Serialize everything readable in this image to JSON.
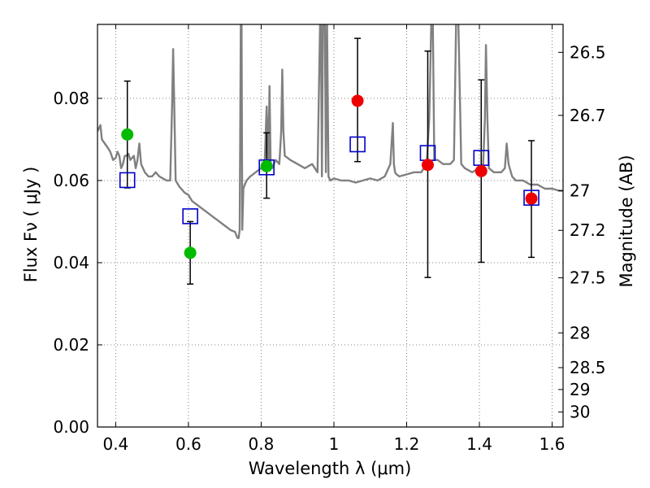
{
  "chart_data": {
    "type": "scatter",
    "title": "",
    "xlabel": "Wavelength  λ (μm)",
    "ylabel": "Flux  Fν  ( μJy )",
    "y2label": "Magnitude (AB)",
    "xlim": [
      0.35,
      1.63
    ],
    "ylim": [
      0.0,
      0.098
    ],
    "grid": true,
    "xticks": [
      0.4,
      0.6,
      0.8,
      1.0,
      1.2,
      1.4,
      1.6
    ],
    "xtick_labels": [
      "0.4",
      "0.6",
      "0.8",
      "1",
      "1.2",
      "1.4",
      "1.6"
    ],
    "yticks": [
      0.0,
      0.02,
      0.04,
      0.06,
      0.08
    ],
    "ytick_labels": [
      "0.00",
      "0.02",
      "0.04",
      "0.06",
      "0.08"
    ],
    "mag_ticks": [
      "26.5",
      "26.7",
      "27",
      "27.2",
      "27.5",
      "28",
      "28.5",
      "29",
      "30"
    ],
    "colors": {
      "model": "#808080",
      "green": "#00bb00",
      "red": "#ee0000",
      "box": "#0000cc",
      "errorbar": "#000000",
      "grid": "#808080"
    },
    "model_spectrum": {
      "x": [
        0.35,
        0.358,
        0.362,
        0.37,
        0.378,
        0.385,
        0.393,
        0.4,
        0.405,
        0.41,
        0.415,
        0.42,
        0.425,
        0.43,
        0.435,
        0.44,
        0.445,
        0.45,
        0.455,
        0.46,
        0.465,
        0.47,
        0.48,
        0.49,
        0.5,
        0.51,
        0.52,
        0.53,
        0.54,
        0.55,
        0.555,
        0.558,
        0.561,
        0.565,
        0.575,
        0.59,
        0.6,
        0.61,
        0.625,
        0.64,
        0.655,
        0.67,
        0.685,
        0.7,
        0.715,
        0.728,
        0.735,
        0.738,
        0.741,
        0.744,
        0.746,
        0.748,
        0.751,
        0.755,
        0.76,
        0.77,
        0.785,
        0.8,
        0.81,
        0.815,
        0.82,
        0.823,
        0.826,
        0.83,
        0.84,
        0.85,
        0.855,
        0.858,
        0.861,
        0.865,
        0.88,
        0.9,
        0.92,
        0.94,
        0.955,
        0.962,
        0.964,
        0.967,
        0.97,
        0.973,
        0.975,
        0.978,
        0.981,
        0.985,
        0.99,
        1.0,
        1.02,
        1.04,
        1.06,
        1.08,
        1.1,
        1.12,
        1.14,
        1.155,
        1.162,
        1.165,
        1.168,
        1.172,
        1.18,
        1.2,
        1.22,
        1.24,
        1.255,
        1.262,
        1.268,
        1.272,
        1.276,
        1.285,
        1.3,
        1.32,
        1.33,
        1.336,
        1.342,
        1.35,
        1.36,
        1.38,
        1.4,
        1.41,
        1.415,
        1.418,
        1.422,
        1.426,
        1.44,
        1.45,
        1.46,
        1.47,
        1.475,
        1.48,
        1.49,
        1.5,
        1.52,
        1.54,
        1.56,
        1.58,
        1.6,
        1.62,
        1.63
      ],
      "y": [
        0.072,
        0.0735,
        0.07,
        0.069,
        0.068,
        0.067,
        0.065,
        0.0655,
        0.067,
        0.066,
        0.063,
        0.064,
        0.066,
        0.066,
        0.0665,
        0.065,
        0.0655,
        0.066,
        0.063,
        0.065,
        0.069,
        0.064,
        0.062,
        0.061,
        0.061,
        0.062,
        0.061,
        0.0605,
        0.06,
        0.06,
        0.078,
        0.092,
        0.078,
        0.06,
        0.0585,
        0.057,
        0.0565,
        0.055,
        0.054,
        0.053,
        0.052,
        0.051,
        0.05,
        0.049,
        0.048,
        0.0475,
        0.046,
        0.046,
        0.048,
        0.099,
        0.099,
        0.048,
        0.058,
        0.059,
        0.06,
        0.061,
        0.062,
        0.063,
        0.065,
        0.078,
        0.064,
        0.083,
        0.064,
        0.063,
        0.065,
        0.064,
        0.072,
        0.087,
        0.072,
        0.066,
        0.065,
        0.064,
        0.063,
        0.064,
        0.062,
        0.099,
        0.099,
        0.061,
        0.099,
        0.099,
        0.099,
        0.062,
        0.099,
        0.061,
        0.06,
        0.0605,
        0.06,
        0.06,
        0.0595,
        0.06,
        0.0605,
        0.06,
        0.061,
        0.064,
        0.074,
        0.064,
        0.062,
        0.0615,
        0.061,
        0.0615,
        0.062,
        0.062,
        0.064,
        0.075,
        0.099,
        0.099,
        0.065,
        0.065,
        0.064,
        0.064,
        0.065,
        0.099,
        0.099,
        0.064,
        0.063,
        0.062,
        0.063,
        0.063,
        0.075,
        0.093,
        0.075,
        0.063,
        0.062,
        0.062,
        0.062,
        0.063,
        0.069,
        0.064,
        0.061,
        0.06,
        0.06,
        0.059,
        0.059,
        0.058,
        0.058,
        0.0575,
        0.0575
      ]
    },
    "observed_green": {
      "x": [
        0.432,
        0.605,
        0.815
      ],
      "y": [
        0.0712,
        0.0424,
        0.0635
      ],
      "err_low": [
        0.0582,
        0.0348,
        0.0557
      ],
      "err_high": [
        0.0842,
        0.05,
        0.0716
      ]
    },
    "observed_red": {
      "x": [
        1.065,
        1.258,
        1.405,
        1.543
      ],
      "y": [
        0.0794,
        0.0638,
        0.0623,
        0.0556
      ],
      "err_low": [
        0.0646,
        0.0364,
        0.0401,
        0.0413
      ],
      "err_high": [
        0.0946,
        0.0915,
        0.0845,
        0.0697
      ]
    },
    "model_boxes": {
      "x": [
        0.432,
        0.605,
        0.815,
        1.065,
        1.258,
        1.405,
        1.543
      ],
      "y": [
        0.0601,
        0.0513,
        0.0632,
        0.0688,
        0.0667,
        0.0655,
        0.0558
      ]
    }
  }
}
